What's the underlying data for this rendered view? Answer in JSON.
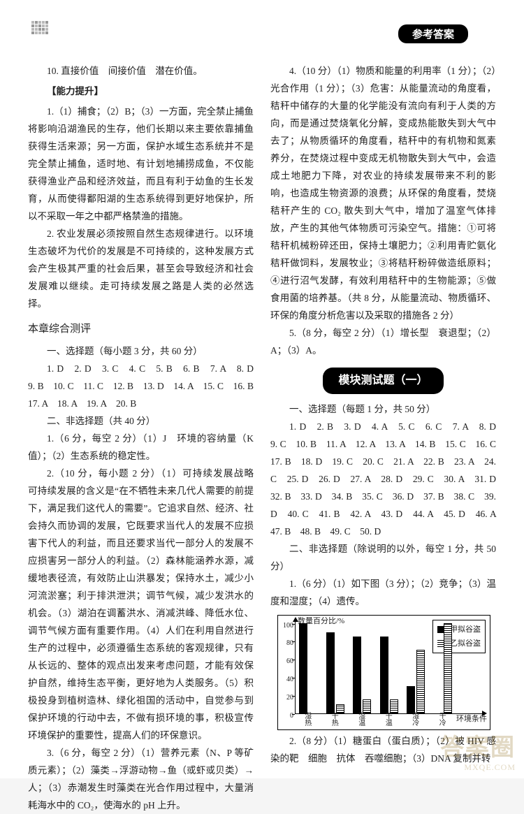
{
  "header": {
    "badge": "参考答案"
  },
  "left": {
    "p10": "10. 直接价值　间接价值　潜在价值。",
    "ability_heading": "【能力提升】",
    "p1a": "1.（1）捕食；（2）B；（3）一方面，完全禁止捕鱼将影响沿湖渔民的生存，他们长期以来主要依靠捕鱼获得生活来源；另一方面，保护水域生态系统并不是完全禁止捕鱼，适时地、有计划地捕捞成鱼，不仅能获得渔业产品和经济效益，而且有利于幼鱼的生长发育，从而使得鄱阳湖的生态系统得到更好地保护，所以不采取一年之中都严格禁渔的措施。",
    "p2a": "2. 农业发展必须按照自然生态规律进行。以环境生态破坏为代价的发展是不可持续的，这种发展方式会产生极其严重的社会后果，甚至会导致经济和社会发展难以继续。走可持续发展之路是人类的必然选择。",
    "chapter_title": "本章综合测评",
    "mcq_heading": "一、选择题（每小题 3 分，共 60 分）",
    "mcq_answers": "1. D　2. D　3. C　4. C　5. B　6. B　7. A　8. D　9. B　10. C　11. C　12. B　13. D　14. A　15. C　16. B　17. A　18. A　19. A　20. B",
    "nonmcq_heading": "二、非选择题（共 40 分）",
    "q1": "1.（6 分，每空 2 分）（1）J　环境的容纳量（K 值）；（2）生态系统的稳定性。",
    "q2": "2.（10 分，每小题 2 分）（1）可持续发展战略　可持续发展的含义是“在不牺牲未来几代人需要的前提下，满足我们这代人的需要”。它追求自然、经济、社会持久而协调的发展，它既要求当代人的发展不应损害下代人的利益，而且还要求当代一部分人的发展不应损害另一部分人的利益。（2）森林能涵养水源，减缓地表径流，有效防止山洪暴发；保持水土，减少小河流淤塞；利于排洪泄洪；调节气候，减少发洪水的机会。（3）湖泊在调蓄洪水、消减洪峰、降低水位、调节气候方面有重要作用。（4）人们在利用自然进行生产的过程中，必须遵循生态系统的客观规律，只有从长远的、整体的观点出发来考虑问题，才能有效保护自然，维持生态平衡，更好地为人类服务。（5）积极投身到植树造林、绿化祖国的活动中，自觉参与到保护环境的行动中去，不做有损环境的事，积极宣传环境保护的重要性，提高人们的环保意识。",
    "q3": "3.（6 分，每空 2 分）（1）营养元素（N、P 等矿质元素）；（2）藻类→浮游动物→鱼（或虾或贝类）→人；（3）赤潮发生时藻类在光合作用过程中，大量消耗海水中的 CO₂，使海水的 pH 上升。"
  },
  "right": {
    "q4": "4.（10 分）（1）物质和能量的利用率（1 分）；（2）光合作用（1 分）；（3）危害：从能量流动的角度看，秸秆中储存的大量的化学能没有流向有利于人类的方向，而是通过焚烧氧化分解，变成热能散失到大气中去了；从物质循环的角度看，秸秆中的有机物和氮素养分，在焚烧过程中变成无机物散失到大气中，会造成土地肥力下降，对农业的持续发展带来不利的影响，也造成生物资源的浪费；从环保的角度看，焚烧秸秆产生的 CO₂ 散失到大气中，增加了温室气体排放，产生的其他气体物质可污染空气。措施：①可将秸秆机械粉碎还田，保持土壤肥力；②利用青贮氨化秸秆做饲料，发展牧业；③将秸秆粉碎做造纸原料；④进行沼气发酵，有效利用秸秆中的生物能源；⑤做食用菌的培养基。（共 8 分，从能量流动、物质循环、环保的角度分析危害以及采取的措施各 2 分）",
    "q5": "5.（8 分，每空 2 分）（1）增长型　衰退型；（2）A；（3）A。",
    "module_badge": "模块测试题（一）",
    "m_mcq_heading": "一、选择题（每题 1 分，共 50 分）",
    "m_mcq_answers": "1. D　2. B　3. D　4. A　5. C　6. C　7. A　8. D　9. C　10. B　11. A　12. A　13. A　14. B　15. C　16. C　17. B　18. D　19. C　20. C　21. A　22. B　23. A　24. C　25. D　26. D　27. A　28. D　29. C　30. A　31. D　32. B　33. D　34. B　35. C　36. D　37. B　38. C　39. D　40. C　41. B　42. A　43. D　44. A　45. D　46. A　47. B　48. B　49. C　50. D",
    "m_nonmcq_heading": "二、非选择题（除说明的以外，每空 1 分，共 50 分）",
    "m_q1": "1.（6 分）（1）如下图（3 分）；（2）竞争；（3）温度和湿度；（4）遗传。",
    "m_q2": "2.（8 分）（1）糖蛋白（蛋白质）；（2）被 HIV 感染的靶　细胞　抗体　吞噬细胞；（3）DNA 复制并转"
  },
  "chart": {
    "y_title": "数量百分比/%",
    "x_title": "环境条件",
    "legend": [
      "甲拟谷盗",
      "乙拟谷盗"
    ],
    "y_ticks": [
      0,
      20,
      40,
      60,
      80,
      100
    ],
    "x_labels": [
      "湿热",
      "干热",
      "湿温",
      "干温",
      "湿冷",
      "干冷"
    ],
    "series1": [
      100,
      90,
      85,
      85,
      30,
      0
    ],
    "series2": [
      0,
      10,
      15,
      15,
      70,
      100
    ],
    "colors": {
      "solid": "#000000",
      "hatch": "#000000",
      "bg": "#ffffff"
    }
  },
  "watermark": {
    "big": "答案圈",
    "small": "MXQE.COM"
  }
}
